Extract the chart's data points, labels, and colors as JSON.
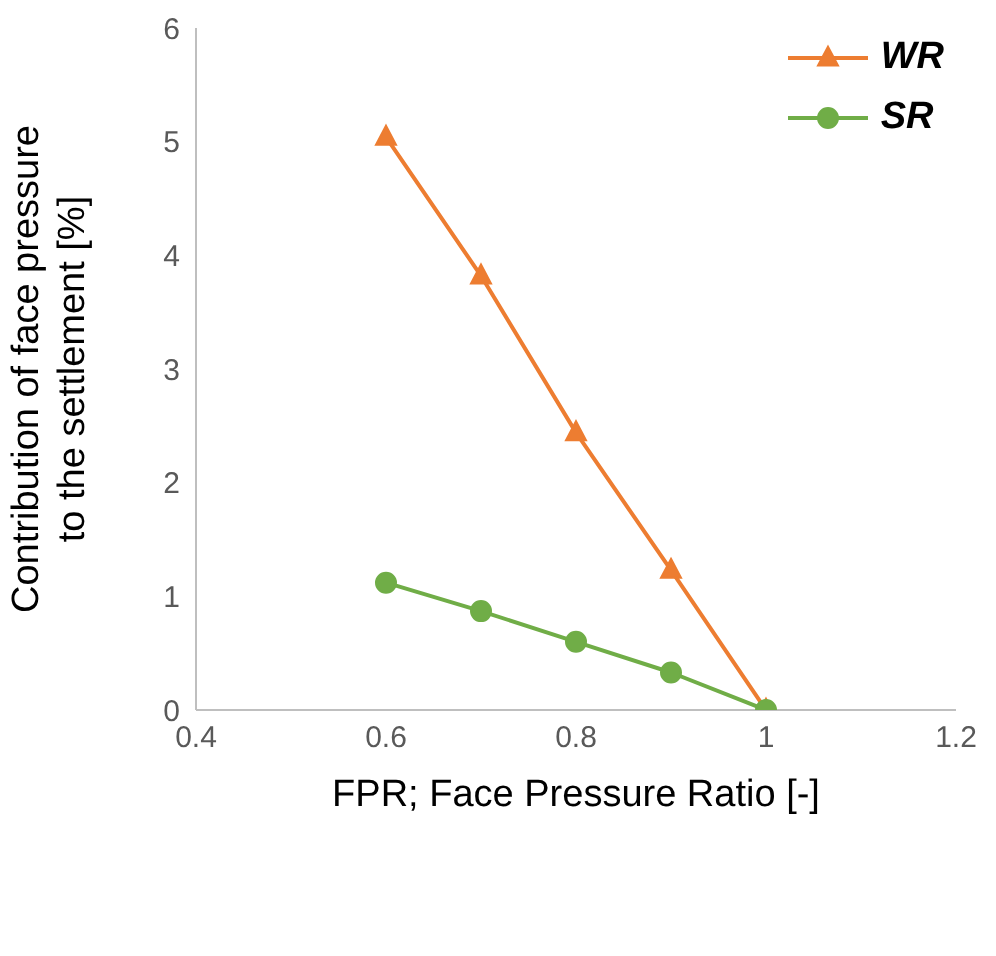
{
  "chart_data": {
    "type": "line",
    "xlabel": "FPR; Face Pressure Ratio [-]",
    "ylabel": "Contribution of face pressure\nto the settlement [%]",
    "x": [
      0.6,
      0.7,
      0.8,
      0.9,
      1
    ],
    "series": [
      {
        "name": "WR",
        "color": "#ed7d31",
        "marker": "triangle",
        "values": [
          5.04,
          3.82,
          2.44,
          1.23,
          0
        ]
      },
      {
        "name": "SR",
        "color": "#70ad47",
        "marker": "circle",
        "values": [
          1.12,
          0.87,
          0.6,
          0.33,
          0
        ]
      }
    ],
    "xlim": [
      0.4,
      1.2
    ],
    "xticks": [
      0.4,
      0.6,
      0.8,
      1,
      1.2
    ],
    "ylim": [
      0,
      6
    ],
    "yticks": [
      0,
      1,
      2,
      3,
      4,
      5,
      6
    ],
    "grid": false,
    "legend": "top right",
    "line_style": "solid"
  }
}
